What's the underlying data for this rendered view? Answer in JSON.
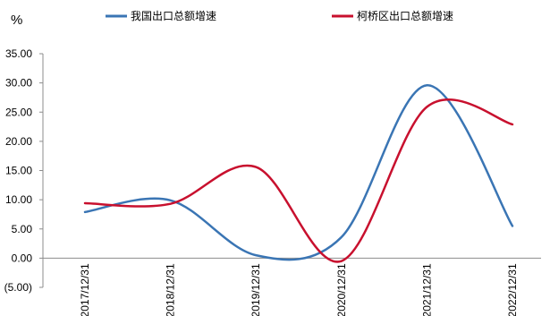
{
  "chart_data": {
    "type": "line",
    "unit_label": "%",
    "categories": [
      "2017/12/31",
      "2018/12/31",
      "2019/12/31",
      "2020/12/31",
      "2021/12/31",
      "2022/12/31"
    ],
    "y_tick_labels": [
      "35.00",
      "30.00",
      "25.00",
      "20.00",
      "15.00",
      "10.00",
      "5.00",
      "0.00",
      "(5.00)"
    ],
    "y_ticks": [
      35,
      30,
      25,
      20,
      15,
      10,
      5,
      0,
      -5
    ],
    "ylim": [
      -5,
      35
    ],
    "grid": false,
    "legend_position": "top",
    "series": [
      {
        "name": "我国出口总额增速",
        "color": "#3A75B4",
        "values": [
          7.9,
          9.9,
          0.5,
          3.6,
          29.6,
          5.5
        ]
      },
      {
        "name": "柯桥区出口总额增速",
        "color": "#C8102E",
        "values": [
          9.4,
          9.3,
          15.6,
          -0.5,
          25.9,
          22.9
        ]
      }
    ]
  }
}
